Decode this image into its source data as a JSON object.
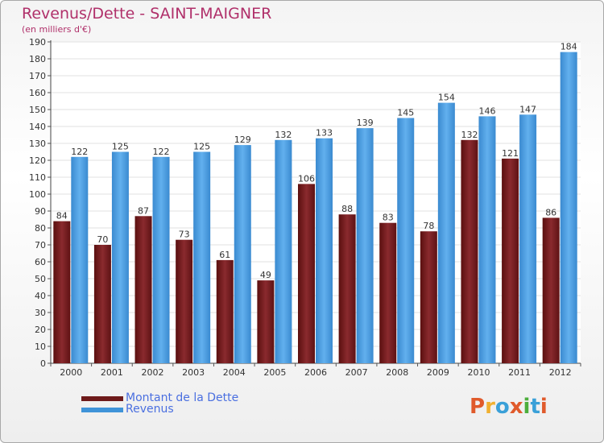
{
  "title": "Revenus/Dette - SAINT-MAIGNER",
  "subtitle": "(en milliers d'€)",
  "legend": [
    {
      "label": "Montant de la Dette",
      "color": "#6e1a1a"
    },
    {
      "label": "Revenus",
      "color": "#3f93d8"
    }
  ],
  "logo": {
    "text": "Proxiti",
    "colors": [
      "#e05a2b",
      "#f0b030",
      "#3aa0d8",
      "#e05a2b",
      "#4cae3c",
      "#3aa0d8",
      "#e05a2b"
    ]
  },
  "chart_data": {
    "type": "bar",
    "categories": [
      "2000",
      "2001",
      "2002",
      "2003",
      "2004",
      "2005",
      "2006",
      "2007",
      "2008",
      "2009",
      "2010",
      "2011",
      "2012"
    ],
    "series": [
      {
        "name": "Montant de la Dette",
        "color": "#6e1a1a",
        "values": [
          84,
          70,
          87,
          73,
          61,
          49,
          106,
          88,
          83,
          78,
          132,
          121,
          86
        ]
      },
      {
        "name": "Revenus",
        "color": "#3f93d8",
        "values": [
          122,
          125,
          122,
          125,
          129,
          132,
          133,
          139,
          145,
          154,
          146,
          147,
          184
        ]
      }
    ],
    "ylim": [
      0,
      190
    ],
    "yticks": [
      0,
      10,
      20,
      30,
      40,
      50,
      60,
      70,
      80,
      90,
      100,
      110,
      120,
      130,
      140,
      150,
      160,
      170,
      180,
      190
    ],
    "grid": true,
    "legend_position": "bottom-left"
  }
}
